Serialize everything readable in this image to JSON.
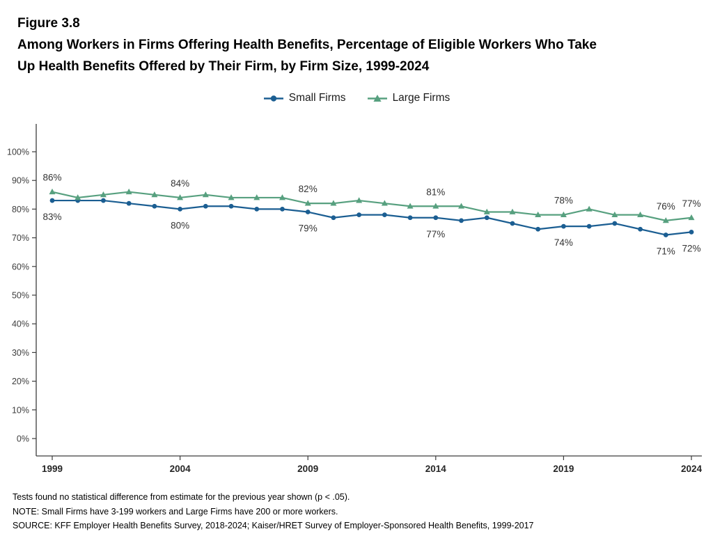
{
  "header": {
    "figure_number": "Figure 3.8",
    "title_lines": [
      "Among Workers in Firms Offering Health Benefits, Percentage of Eligible Workers Who Take",
      "Up Health Benefits Offered by Their Firm, by Firm Size, 1999-2024"
    ]
  },
  "chart_data": {
    "type": "line",
    "title": "Among Workers in Firms Offering Health Benefits, Percentage of Eligible Workers Who Take Up Health Benefits Offered by Their Firm, by Firm Size, 1999-2024",
    "x": [
      1999,
      2000,
      2001,
      2002,
      2003,
      2004,
      2005,
      2006,
      2007,
      2008,
      2009,
      2010,
      2011,
      2012,
      2013,
      2014,
      2015,
      2016,
      2017,
      2018,
      2019,
      2020,
      2021,
      2022,
      2023,
      2024
    ],
    "series": [
      {
        "name": "Small Firms",
        "marker": "circle",
        "color": "#1b5e92",
        "values": [
          83,
          83,
          83,
          82,
          81,
          80,
          81,
          81,
          80,
          80,
          79,
          77,
          78,
          78,
          77,
          77,
          76,
          77,
          75,
          73,
          74,
          74,
          75,
          73,
          71,
          72
        ]
      },
      {
        "name": "Large Firms",
        "marker": "triangle",
        "color": "#57a07f",
        "values": [
          86,
          84,
          85,
          86,
          85,
          84,
          85,
          84,
          84,
          84,
          82,
          82,
          83,
          82,
          81,
          81,
          81,
          79,
          79,
          78,
          78,
          80,
          78,
          78,
          76,
          77
        ]
      }
    ],
    "ylim": [
      0,
      100
    ],
    "yticks": [
      "0%",
      "10%",
      "20%",
      "30%",
      "40%",
      "50%",
      "60%",
      "70%",
      "80%",
      "90%",
      "100%"
    ],
    "xticks": [
      1999,
      2004,
      2009,
      2014,
      2019,
      2024
    ],
    "grid": false,
    "legend_position": "top-center",
    "annotations": [
      {
        "year": 1999,
        "series": "Large Firms",
        "label": "86%",
        "position": "above"
      },
      {
        "year": 1999,
        "series": "Small Firms",
        "label": "83%",
        "position": "below"
      },
      {
        "year": 2004,
        "series": "Large Firms",
        "label": "84%",
        "position": "above"
      },
      {
        "year": 2004,
        "series": "Small Firms",
        "label": "80%",
        "position": "below"
      },
      {
        "year": 2009,
        "series": "Large Firms",
        "label": "82%",
        "position": "above"
      },
      {
        "year": 2009,
        "series": "Small Firms",
        "label": "79%",
        "position": "below"
      },
      {
        "year": 2014,
        "series": "Large Firms",
        "label": "81%",
        "position": "above"
      },
      {
        "year": 2014,
        "series": "Small Firms",
        "label": "77%",
        "position": "below"
      },
      {
        "year": 2019,
        "series": "Large Firms",
        "label": "78%",
        "position": "above"
      },
      {
        "year": 2019,
        "series": "Small Firms",
        "label": "74%",
        "position": "below"
      },
      {
        "year": 2023,
        "series": "Large Firms",
        "label": "76%",
        "position": "above"
      },
      {
        "year": 2023,
        "series": "Small Firms",
        "label": "71%",
        "position": "below"
      },
      {
        "year": 2024,
        "series": "Large Firms",
        "label": "77%",
        "position": "above"
      },
      {
        "year": 2024,
        "series": "Small Firms",
        "label": "72%",
        "position": "below"
      }
    ]
  },
  "notes": {
    "lines": [
      "Tests found no statistical difference from estimate for the previous year shown (p < .05).",
      "NOTE: Small Firms have 3-199 workers and Large Firms have 200 or more workers.",
      "SOURCE: KFF Employer Health Benefits Survey, 2018-2024; Kaiser/HRET Survey of Employer-Sponsored Health Benefits, 1999-2017"
    ]
  }
}
